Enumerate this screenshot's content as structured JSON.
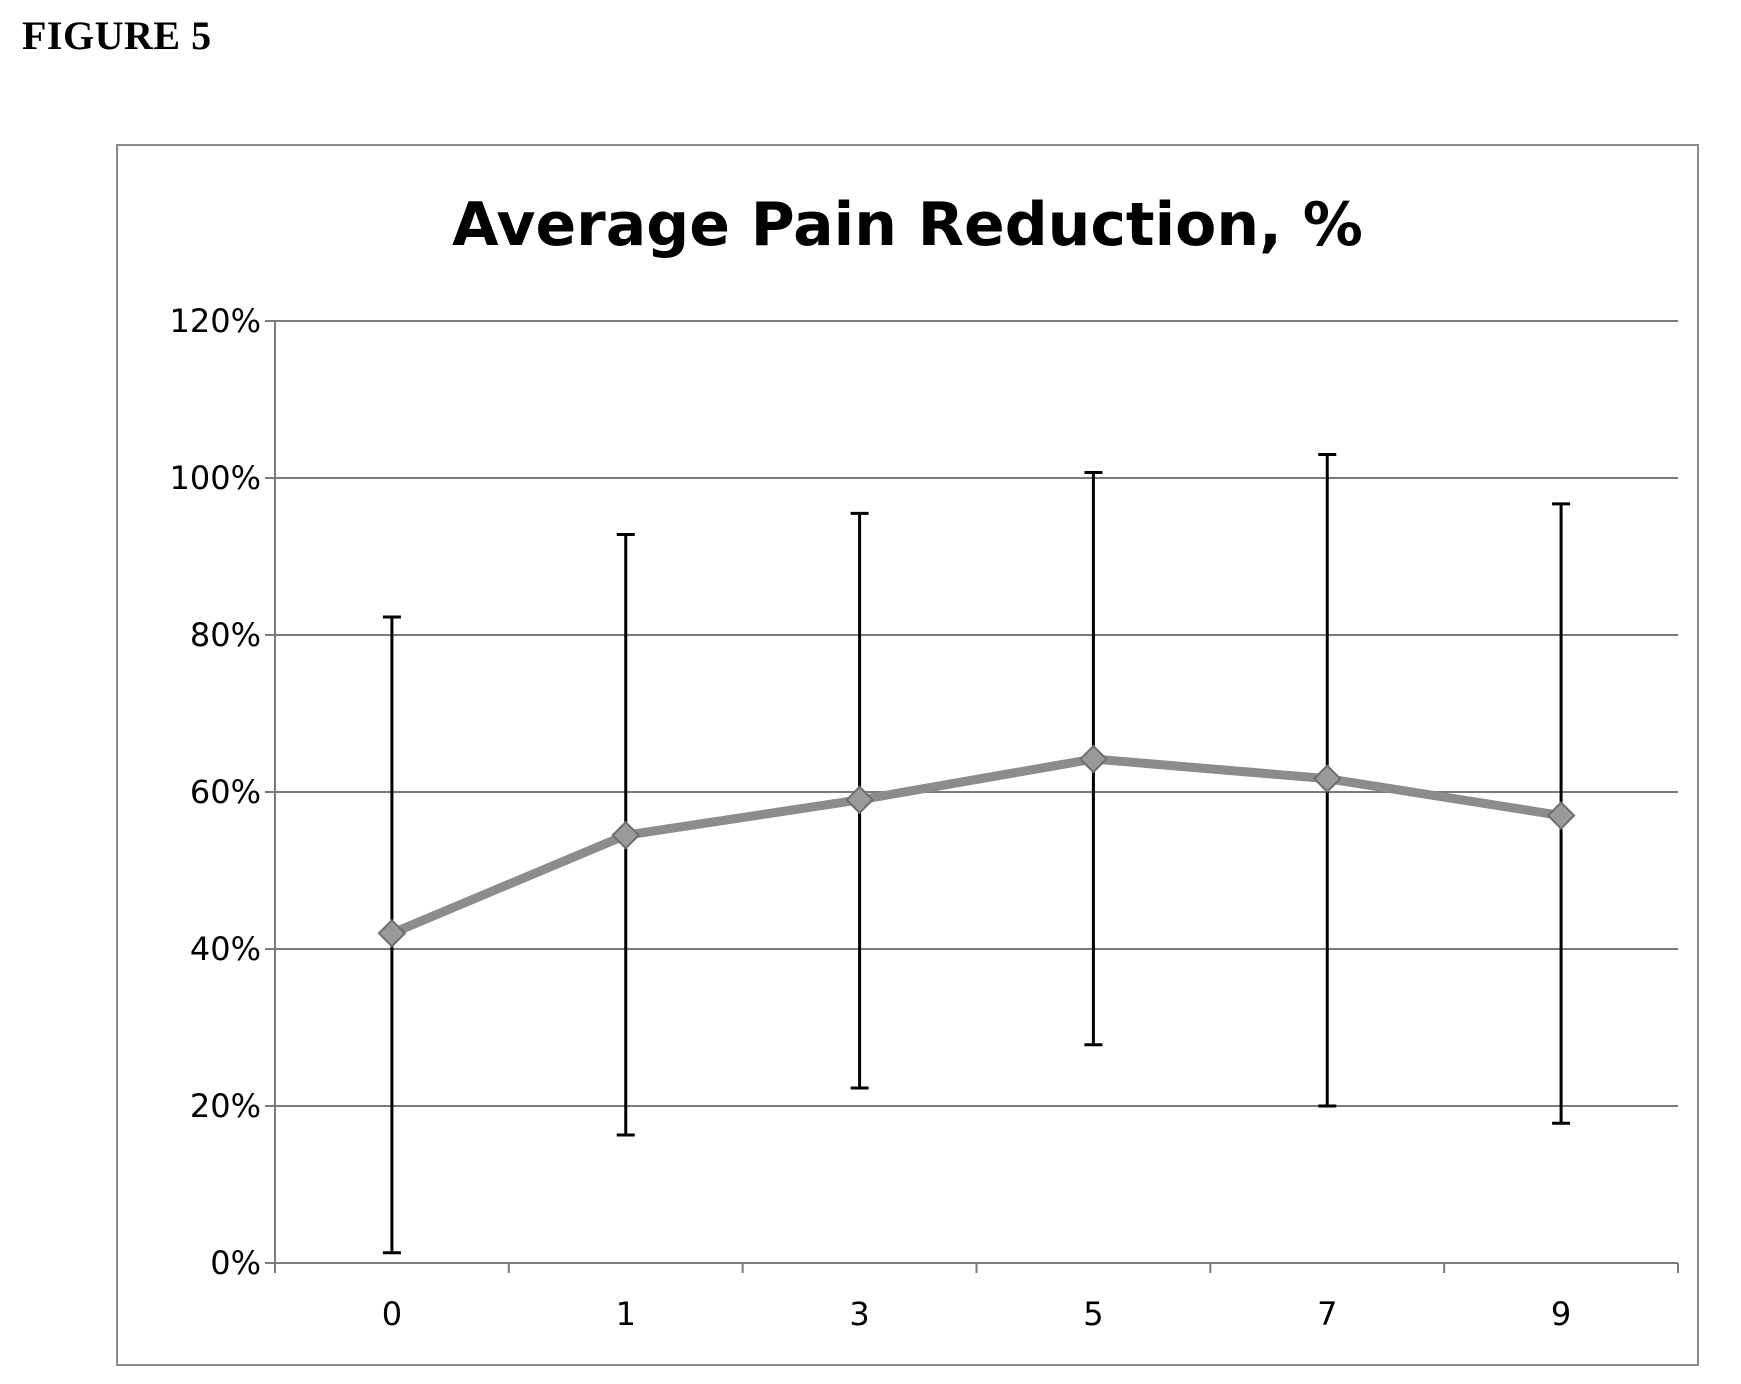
{
  "figure_label": "FIGURE 5",
  "chart_data": {
    "type": "line",
    "title": "Average Pain Reduction, %",
    "xlabel": "",
    "ylabel": "",
    "categories": [
      "0",
      "1",
      "3",
      "5",
      "7",
      "9"
    ],
    "yticks": [
      "0%",
      "20%",
      "40%",
      "60%",
      "80%",
      "100%",
      "120%"
    ],
    "ylim": [
      0,
      1.2
    ],
    "grid": true,
    "legend": "none",
    "series": [
      {
        "values": [
          0.42,
          0.545,
          0.59,
          0.642,
          0.617,
          0.57
        ],
        "error_low": [
          0.013,
          0.163,
          0.223,
          0.278,
          0.2,
          0.178
        ],
        "error_high": [
          0.823,
          0.928,
          0.955,
          1.007,
          1.03,
          0.967
        ],
        "color": "#8c8c8c",
        "marker": "diamond"
      }
    ],
    "error_bar_color": "#000000"
  }
}
